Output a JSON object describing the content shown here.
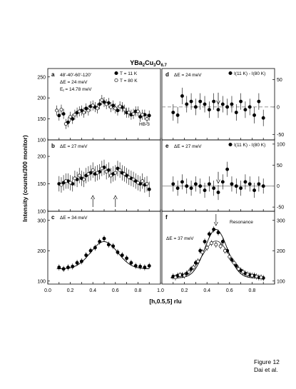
{
  "figure": {
    "title_main": "YBa",
    "title_sub1": "2",
    "title_mid1": "Cu",
    "title_sub2": "3",
    "title_mid2": "O",
    "title_sub3": "6.7",
    "ylabel": "Intensity (counts/300 monitor)",
    "xlabel": "[h,0.5,5] rlu",
    "caption_line1": "Figure 12",
    "caption_line2": "Dai et al."
  },
  "chart_data": [
    {
      "panel": "a",
      "type": "scatter",
      "ylim": [
        100,
        270
      ],
      "xlim": [
        0.0,
        1.0
      ],
      "yticks": [
        100,
        150,
        200,
        250
      ],
      "annotations": [
        "48'-40'-60'-120'",
        "ΔE = 24 meV",
        "E",
        "f",
        " = 14.78 meV",
        "HB-3"
      ],
      "legend": [
        "T = 11 K",
        "T = 80 K"
      ],
      "series": [
        {
          "name": "T = 11 K",
          "filled": true,
          "x": [
            0.1,
            0.14,
            0.18,
            0.22,
            0.26,
            0.3,
            0.34,
            0.38,
            0.42,
            0.46,
            0.5,
            0.54,
            0.58,
            0.62,
            0.66,
            0.7,
            0.74,
            0.78,
            0.82,
            0.86,
            0.9
          ],
          "y": [
            158,
            162,
            142,
            150,
            165,
            170,
            175,
            180,
            178,
            185,
            190,
            188,
            182,
            170,
            178,
            165,
            160,
            168,
            155,
            160,
            158
          ],
          "err": 12
        },
        {
          "name": "T = 80 K",
          "filled": false,
          "x": [
            0.08,
            0.12,
            0.16,
            0.2,
            0.24,
            0.28,
            0.32,
            0.36,
            0.4,
            0.44,
            0.48,
            0.52,
            0.56,
            0.6,
            0.64,
            0.68,
            0.72,
            0.76,
            0.8,
            0.84,
            0.88
          ],
          "y": [
            170,
            172,
            138,
            155,
            160,
            168,
            165,
            170,
            182,
            175,
            195,
            185,
            178,
            175,
            180,
            172,
            165,
            162,
            168,
            160,
            150
          ],
          "err": 12
        }
      ]
    },
    {
      "panel": "b",
      "type": "scatter",
      "ylim": [
        100,
        230
      ],
      "xlim": [
        0.0,
        1.0
      ],
      "yticks": [
        100,
        150,
        200
      ],
      "annotations": [
        "ΔE = 27 meV"
      ],
      "arrows_x": [
        0.4,
        0.6
      ],
      "series": [
        {
          "name": "T = 11 K",
          "filled": true,
          "x": [
            0.1,
            0.14,
            0.18,
            0.22,
            0.26,
            0.3,
            0.34,
            0.38,
            0.42,
            0.46,
            0.5,
            0.54,
            0.58,
            0.62,
            0.66,
            0.7,
            0.74,
            0.78,
            0.82,
            0.86,
            0.9
          ],
          "y": [
            150,
            152,
            155,
            150,
            158,
            160,
            165,
            170,
            168,
            172,
            180,
            175,
            168,
            178,
            170,
            165,
            160,
            155,
            150,
            148,
            140
          ],
          "err": 14
        },
        {
          "name": "T = 80 K",
          "filled": false,
          "x": [
            0.12,
            0.16,
            0.2,
            0.24,
            0.28,
            0.32,
            0.36,
            0.4,
            0.44,
            0.48,
            0.52,
            0.56,
            0.6,
            0.64,
            0.68,
            0.72,
            0.76,
            0.8,
            0.84,
            0.88
          ],
          "y": [
            148,
            155,
            152,
            160,
            165,
            158,
            168,
            175,
            170,
            178,
            172,
            165,
            170,
            175,
            168,
            162,
            158,
            152,
            155,
            150
          ],
          "err": 14
        }
      ]
    },
    {
      "panel": "c",
      "type": "scatter",
      "ylim": [
        90,
        330
      ],
      "xlim": [
        0.0,
        1.0
      ],
      "yticks": [
        100,
        200,
        300
      ],
      "annotations": [
        "ΔE = 34 meV"
      ],
      "fit": {
        "base": 140,
        "amp": 90,
        "center": 0.5,
        "sigma": 0.12
      },
      "series": [
        {
          "name": "T = 11 K",
          "filled": true,
          "x": [
            0.1,
            0.14,
            0.18,
            0.22,
            0.26,
            0.3,
            0.34,
            0.38,
            0.42,
            0.46,
            0.5,
            0.54,
            0.58,
            0.62,
            0.66,
            0.7,
            0.74,
            0.78,
            0.82,
            0.86,
            0.9
          ],
          "y": [
            145,
            140,
            145,
            148,
            160,
            165,
            185,
            200,
            210,
            230,
            240,
            220,
            215,
            195,
            185,
            175,
            160,
            150,
            148,
            145,
            150
          ],
          "err": 10
        }
      ]
    },
    {
      "panel": "d",
      "type": "scatter",
      "ylim": [
        -60,
        70
      ],
      "xlim": [
        0.0,
        1.0
      ],
      "yticks_right": [
        -50,
        0,
        50,
        100
      ],
      "annotations": [
        "ΔE = 24 meV"
      ],
      "legend": [
        "I(11 K) - I(80 K)"
      ],
      "arrow_x": 0.5,
      "zero_line": 0,
      "series": [
        {
          "name": "I(11 K) - I(80 K)",
          "filled": true,
          "x": [
            0.1,
            0.14,
            0.18,
            0.22,
            0.26,
            0.3,
            0.34,
            0.38,
            0.42,
            0.46,
            0.5,
            0.54,
            0.58,
            0.62,
            0.66,
            0.7,
            0.74,
            0.78,
            0.82,
            0.86,
            0.9
          ],
          "y": [
            -10,
            -15,
            20,
            5,
            10,
            0,
            10,
            5,
            -5,
            10,
            -5,
            5,
            0,
            5,
            -10,
            10,
            -5,
            0,
            -15,
            10,
            -20
          ],
          "err": 15
        }
      ]
    },
    {
      "panel": "e",
      "type": "scatter",
      "ylim": [
        -60,
        110
      ],
      "xlim": [
        0.0,
        1.0
      ],
      "yticks_right": [
        -50,
        0,
        50,
        100
      ],
      "annotations": [
        "ΔE = 27 meV"
      ],
      "legend": [
        "I(11 K) - I(80 K)"
      ],
      "arrow_x": 0.5,
      "zero_line": 0,
      "series": [
        {
          "name": "I(11 K) - I(80 K)",
          "filled": true,
          "x": [
            0.1,
            0.14,
            0.18,
            0.22,
            0.26,
            0.3,
            0.34,
            0.38,
            0.42,
            0.46,
            0.5,
            0.54,
            0.58,
            0.62,
            0.66,
            0.7,
            0.74,
            0.78,
            0.82,
            0.86,
            0.9
          ],
          "y": [
            5,
            -5,
            10,
            0,
            -5,
            5,
            0,
            -10,
            5,
            -5,
            -15,
            10,
            40,
            5,
            0,
            -5,
            10,
            5,
            -10,
            5,
            0
          ],
          "err": 18
        }
      ]
    },
    {
      "panel": "f",
      "type": "scatter",
      "ylim": [
        90,
        330
      ],
      "xlim": [
        0.0,
        1.0
      ],
      "yticks_right": [
        100,
        200,
        300
      ],
      "annotations": [
        "ΔE = 37 meV",
        "Resonance"
      ],
      "arrow_x": 0.48,
      "fits": [
        {
          "base": 110,
          "amp": 160,
          "center": 0.48,
          "sigma": 0.1
        },
        {
          "base": 112,
          "amp": 120,
          "center": 0.48,
          "sigma": 0.12
        }
      ],
      "series": [
        {
          "name": "T = 11 K",
          "filled": true,
          "x": [
            0.1,
            0.14,
            0.18,
            0.22,
            0.26,
            0.3,
            0.34,
            0.38,
            0.42,
            0.46,
            0.5,
            0.54,
            0.58,
            0.62,
            0.66,
            0.7,
            0.74,
            0.78,
            0.82,
            0.86,
            0.9
          ],
          "y": [
            115,
            118,
            120,
            125,
            140,
            160,
            200,
            230,
            255,
            270,
            260,
            230,
            200,
            170,
            150,
            135,
            125,
            120,
            118,
            112,
            110
          ],
          "err": 10
        },
        {
          "name": "T = 80 K",
          "filled": false,
          "x": [
            0.12,
            0.16,
            0.2,
            0.24,
            0.28,
            0.32,
            0.36,
            0.4,
            0.44,
            0.48,
            0.52,
            0.56,
            0.6,
            0.64,
            0.68,
            0.72,
            0.76,
            0.8,
            0.84,
            0.88
          ],
          "y": [
            112,
            120,
            118,
            130,
            145,
            165,
            195,
            210,
            225,
            220,
            215,
            200,
            180,
            160,
            140,
            130,
            122,
            118,
            115,
            112
          ],
          "err": 10
        }
      ]
    }
  ],
  "x_axis": {
    "ticks": [
      0.0,
      0.1,
      0.2,
      0.3,
      0.4,
      0.5,
      0.6,
      0.7,
      0.8,
      0.9,
      1.0
    ],
    "tick_labels": [
      "0.0",
      "0.2",
      "0.4",
      "0.6",
      "0.8",
      "1.0"
    ],
    "tick_labels_right": [
      "0.2",
      "0.4",
      "0.6",
      "0.8",
      "1.0"
    ]
  }
}
